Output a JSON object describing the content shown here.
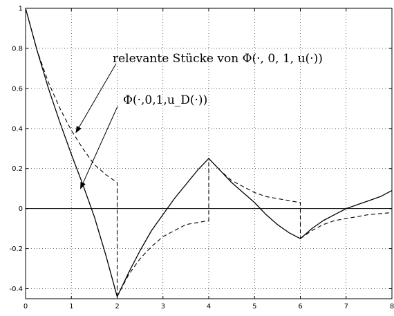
{
  "chart_data": {
    "type": "line",
    "title": "",
    "xlabel": "",
    "ylabel": "",
    "xlim": [
      0,
      8
    ],
    "ylim": [
      -0.45,
      1
    ],
    "grid": true,
    "x_ticks": [
      0,
      1,
      2,
      3,
      4,
      5,
      6,
      7,
      8
    ],
    "x_tick_labels": [
      "0",
      "1",
      "2",
      "3",
      "4",
      "5",
      "6",
      "7",
      "8"
    ],
    "y_ticks": [
      -0.4,
      -0.2,
      0,
      0.2,
      0.4,
      0.6,
      0.8,
      1
    ],
    "y_tick_labels": [
      "-0.4",
      "-0.2",
      "0",
      "0.2",
      "0.4",
      "0.6",
      "0.8",
      "1"
    ],
    "series": [
      {
        "style": "solid",
        "color": "#000000",
        "x": [
          0,
          0.25,
          0.5,
          0.75,
          1.0,
          1.25,
          1.5,
          1.75,
          2.0,
          2.25,
          2.5,
          2.75,
          3.0,
          3.25,
          3.5,
          3.75,
          4.0,
          4.25,
          4.5,
          4.75,
          5.0,
          5.25,
          5.5,
          5.75,
          6.0,
          6.25,
          6.5,
          6.75,
          7.0,
          7.25,
          7.5,
          7.75,
          8.0
        ],
        "y": [
          1.0,
          0.79,
          0.6,
          0.43,
          0.27,
          0.12,
          -0.04,
          -0.23,
          -0.44,
          -0.32,
          -0.21,
          -0.11,
          -0.03,
          0.05,
          0.12,
          0.19,
          0.25,
          0.19,
          0.13,
          0.08,
          0.03,
          -0.03,
          -0.08,
          -0.12,
          -0.15,
          -0.1,
          -0.06,
          -0.03,
          0.0,
          0.02,
          0.04,
          0.06,
          0.09
        ]
      },
      {
        "style": "dashed",
        "color": "#000000",
        "segments": [
          {
            "x": [
              0,
              0.25,
              0.5,
              0.75,
              1.0,
              1.25,
              1.5,
              1.75,
              2.0,
              2.0
            ],
            "y": [
              1.0,
              0.79,
              0.63,
              0.5,
              0.39,
              0.3,
              0.22,
              0.17,
              0.13,
              -0.44
            ]
          },
          {
            "x": [
              2.0,
              2.25,
              2.5,
              2.75,
              3.0,
              3.25,
              3.5,
              3.75,
              4.0,
              4.0
            ],
            "y": [
              -0.44,
              -0.33,
              -0.25,
              -0.19,
              -0.14,
              -0.11,
              -0.08,
              -0.07,
              -0.06,
              0.25
            ]
          },
          {
            "x": [
              4.0,
              4.25,
              4.5,
              4.75,
              5.0,
              5.25,
              5.5,
              5.75,
              6.0,
              6.0
            ],
            "y": [
              0.25,
              0.19,
              0.14,
              0.11,
              0.08,
              0.06,
              0.05,
              0.04,
              0.03,
              -0.15
            ]
          },
          {
            "x": [
              6.0,
              6.25,
              6.5,
              6.75,
              7.0,
              7.25,
              7.5,
              7.75,
              8.0
            ],
            "y": [
              -0.15,
              -0.11,
              -0.08,
              -0.06,
              -0.05,
              -0.04,
              -0.03,
              -0.025,
              -0.02
            ]
          }
        ]
      }
    ],
    "annotations": [
      {
        "text": "relevante Stücke von Φ(·, 0, 1, u(·))",
        "arrow_to": [
          1.1,
          0.38
        ]
      },
      {
        "text": "Φ(·,0,1,u_D(·))",
        "arrow_to": [
          1.2,
          0.1
        ]
      }
    ]
  }
}
